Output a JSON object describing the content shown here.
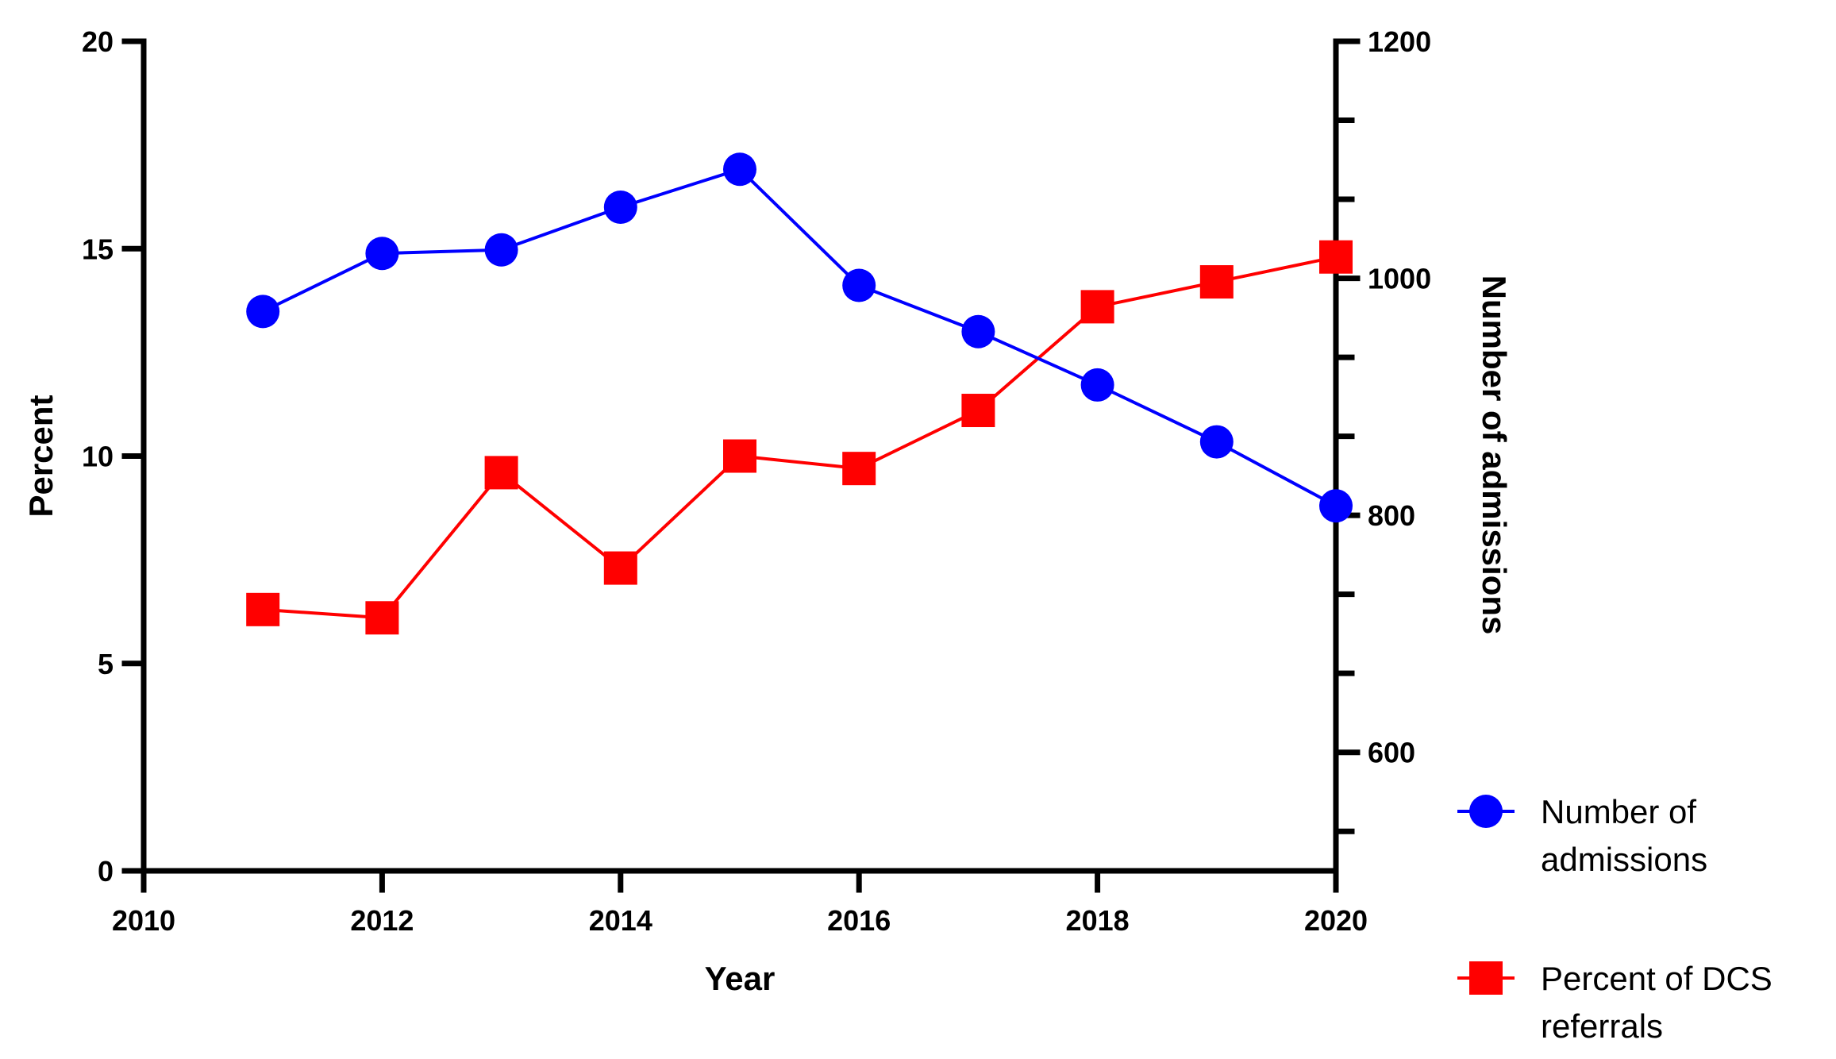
{
  "chart_data": {
    "type": "line",
    "xlabel": "Year",
    "ylabel_left": "Percent",
    "ylabel_right": "Number of admissions",
    "xlim": [
      2010,
      2020
    ],
    "x_ticks": [
      2010,
      2012,
      2014,
      2016,
      2018,
      2020
    ],
    "ylim_left": [
      0,
      20
    ],
    "y_ticks_left": [
      0,
      5,
      10,
      15,
      20
    ],
    "ylim_right": [
      500,
      1200
    ],
    "y_ticks_right_labeled": [
      600,
      800,
      1000,
      1200
    ],
    "y_ticks_right_minor": [
      533.33,
      666.67,
      733.33,
      866.67,
      933.33,
      1066.67,
      1133.33
    ],
    "grid": false,
    "legend_position": "right",
    "series": [
      {
        "name": "Number of admissions",
        "axis": "right",
        "marker": "circle",
        "color": "#0000ff",
        "x": [
          2011,
          2012,
          2013,
          2014,
          2015,
          2016,
          2017,
          2018,
          2019,
          2020
        ],
        "y": [
          972,
          1021,
          1024,
          1060,
          1092,
          994,
          955,
          910,
          862,
          808
        ]
      },
      {
        "name": "Percent  of DCS referrals",
        "axis": "left",
        "marker": "square",
        "color": "#ff0000",
        "x": [
          2011,
          2012,
          2013,
          2014,
          2015,
          2016,
          2017,
          2018,
          2019,
          2020
        ],
        "y": [
          6.3,
          6.1,
          9.6,
          7.3,
          10.0,
          9.7,
          11.1,
          13.6,
          14.2,
          14.8
        ]
      }
    ],
    "legend": [
      {
        "lines": [
          "Number of",
          "admissions"
        ],
        "marker": "circle",
        "color": "#0000ff"
      },
      {
        "lines": [
          "Percent  of DCS",
          "referrals"
        ],
        "marker": "square",
        "color": "#ff0000"
      }
    ]
  }
}
